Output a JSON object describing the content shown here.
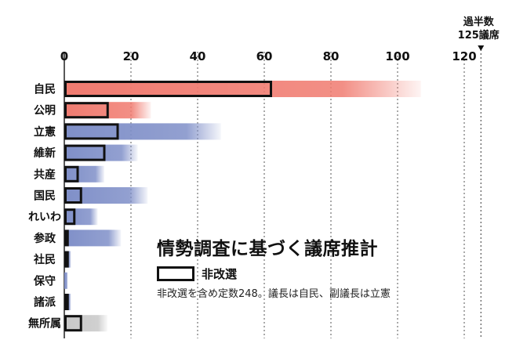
{
  "chart_data": {
    "type": "bar",
    "orientation": "horizontal",
    "title": "情勢調査に基づく議席推計",
    "note": "非改選を含め定数248。議長は自民、副議長は立憲",
    "legend": [
      {
        "label": "非改選",
        "style": "outlined box"
      }
    ],
    "x_ticks": [
      "0",
      "20",
      "40",
      "60",
      "80",
      "100",
      "120"
    ],
    "xlim": [
      0,
      125
    ],
    "grid": true,
    "threshold": {
      "value": 125,
      "label_line1": "過半数",
      "label_line2": "125議席"
    },
    "categories": [
      "自民",
      "公明",
      "立憲",
      "維新",
      "共産",
      "国民",
      "れいわ",
      "参政",
      "社民",
      "保守",
      "諸派",
      "無所属"
    ],
    "estimate_max": [
      107,
      26,
      47,
      22,
      12,
      25,
      10,
      17,
      2,
      1,
      2,
      13
    ],
    "non_contested": [
      62,
      13,
      16,
      12,
      4,
      5,
      3,
      1,
      1,
      0,
      1,
      5
    ],
    "colors": {
      "自民": "#f07b70",
      "公明": "#f07b70",
      "default": "#7f8fc8",
      "無所属": "#c8c8c8"
    }
  }
}
